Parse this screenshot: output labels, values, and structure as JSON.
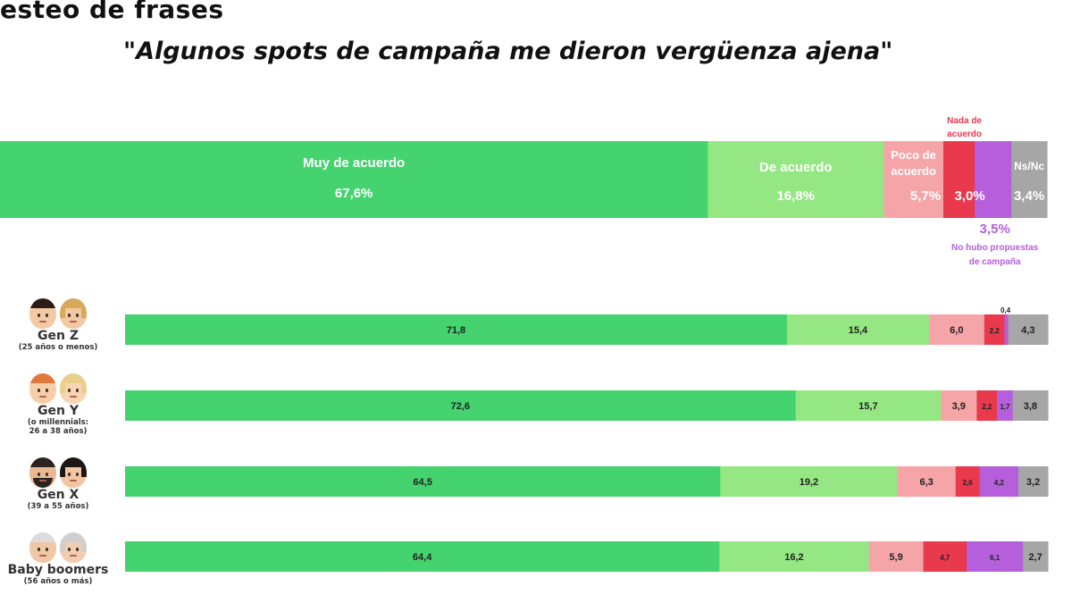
{
  "header": {
    "section": "esteo de frases"
  },
  "subtitle": "\"Algunos spots de campaña me dieron vergüenza ajena\"",
  "chart_data": {
    "type": "bar",
    "stacked": true,
    "orientation": "horizontal",
    "categories": [
      "Muy de acuerdo",
      "De acuerdo",
      "Poco de acuerdo",
      "Nada de acuerdo",
      "No hubo propuestas de campaña",
      "Ns/Nc"
    ],
    "category_labels": {
      "muy": "Muy de acuerdo",
      "de": "De acuerdo",
      "poco_line1": "Poco de",
      "poco_line2": "acuerdo",
      "nada_line1": "Nada de",
      "nada_line2": "acuerdo",
      "nohubo_line1": "No hubo propuestas",
      "nohubo_line2": "de campaña",
      "nsnc": "Ns/Nc"
    },
    "colors": [
      "#45d36f",
      "#95e784",
      "#f5a5a8",
      "#e8394d",
      "#b65fdc",
      "#a6a6a6"
    ],
    "total": {
      "values": [
        67.6,
        16.8,
        5.7,
        3.0,
        3.5,
        3.4
      ],
      "labels": [
        "67,6%",
        "16,8%",
        "5,7%",
        "3,0%",
        "3,5%",
        "3,4%"
      ]
    },
    "groups": [
      {
        "name": "Gen Z",
        "sub": [
          "(25 años o menos)"
        ],
        "values": [
          71.8,
          15.4,
          6.0,
          2.2,
          0.4,
          4.3
        ],
        "labels": [
          "71,8",
          "15,4",
          "6,0",
          "2,2",
          "0,4",
          "4,3"
        ]
      },
      {
        "name": "Gen Y",
        "sub": [
          "(o millennials:",
          "26 a 38 años)"
        ],
        "values": [
          72.6,
          15.7,
          3.9,
          2.2,
          1.7,
          3.8
        ],
        "labels": [
          "72,6",
          "15,7",
          "3,9",
          "2,2",
          "1,7",
          "3,8"
        ]
      },
      {
        "name": "Gen X",
        "sub": [
          "(39 a 55 años)"
        ],
        "values": [
          64.5,
          19.2,
          6.3,
          2.6,
          4.2,
          3.2
        ],
        "labels": [
          "64,5",
          "19,2",
          "6,3",
          "2,6",
          "4,2",
          "3,2"
        ]
      },
      {
        "name": "Baby boomers",
        "sub": [
          "(56 años o más)"
        ],
        "values": [
          64.4,
          16.2,
          5.9,
          4.7,
          6.1,
          2.7
        ],
        "labels": [
          "64,4",
          "16,2",
          "5,9",
          "4,7",
          "6,1",
          "2,7"
        ]
      }
    ],
    "xlim": [
      0,
      100
    ],
    "grid": false,
    "legend": "none",
    "avatars": [
      {
        "left": {
          "hair": "#2b1d16",
          "skin": "#f3c9a6",
          "beard": false
        },
        "right": {
          "hair": "#d8a95a",
          "skin": "#f1c9a2",
          "beard": false
        }
      },
      {
        "left": {
          "hair": "#e0783c",
          "skin": "#f6cfaa",
          "beard": false
        },
        "right": {
          "hair": "#e9cf8a",
          "skin": "#f6d4b4",
          "beard": false
        }
      },
      {
        "left": {
          "hair": "#2b2320",
          "skin": "#e8b993",
          "beard": true
        },
        "right": {
          "hair": "#1c1716",
          "skin": "#f2c6a4",
          "beard": false
        }
      },
      {
        "left": {
          "hair": "#dcdcdc",
          "skin": "#f0c7a5",
          "beard": false
        },
        "right": {
          "hair": "#cfcfcf",
          "skin": "#f3cdb0",
          "beard": false
        }
      }
    ]
  }
}
